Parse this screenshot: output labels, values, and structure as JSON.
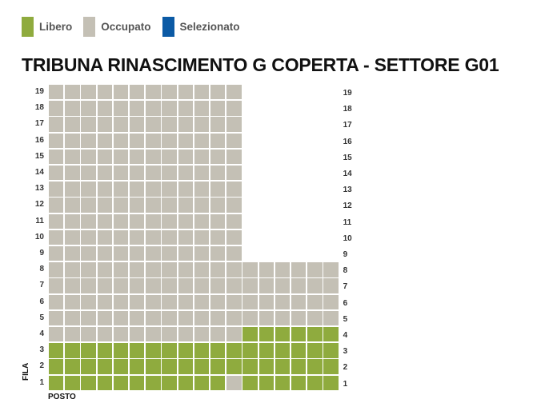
{
  "legend": {
    "items": [
      {
        "label": "Libero",
        "color": "#8fab3e"
      },
      {
        "label": "Occupato",
        "color": "#c4c0b5"
      },
      {
        "label": "Selezionato",
        "color": "#0b5aa5"
      }
    ]
  },
  "title": "TRIBUNA RINASCIMENTO G COPERTA - SETTORE G01",
  "axis": {
    "fila": "FILA",
    "posto": "POSTO"
  },
  "seat_map": {
    "rows": [
      {
        "label": "19",
        "seats": "OOOOOOOOOOOO"
      },
      {
        "label": "18",
        "seats": "OOOOOOOOOOOO"
      },
      {
        "label": "17",
        "seats": "OOOOOOOOOOOO"
      },
      {
        "label": "16",
        "seats": "OOOOOOOOOOOO"
      },
      {
        "label": "15",
        "seats": "OOOOOOOOOOOO"
      },
      {
        "label": "14",
        "seats": "OOOOOOOOOOOO"
      },
      {
        "label": "13",
        "seats": "OOOOOOOOOOOO"
      },
      {
        "label": "12",
        "seats": "OOOOOOOOOOOO"
      },
      {
        "label": "11",
        "seats": "OOOOOOOOOOOO"
      },
      {
        "label": "10",
        "seats": "OOOOOOOOOOOO"
      },
      {
        "label": "9",
        "seats": "OOOOOOOOOOOO"
      },
      {
        "label": "8",
        "seats": "OOOOOOOOOOOOOOOOOO"
      },
      {
        "label": "7",
        "seats": "OOOOOOOOOOOOOOOOOO"
      },
      {
        "label": "6",
        "seats": "OOOOOOOOOOOOOOOOOO"
      },
      {
        "label": "5",
        "seats": "OOOOOOOOOOOOOOOOOO"
      },
      {
        "label": "4",
        "seats": "OOOOOOOOOOOOLLLLLL"
      },
      {
        "label": "3",
        "seats": "LLLLLLLLLLLLLLLLLL"
      },
      {
        "label": "2",
        "seats": "LLLLLLLLLLLLLLLLLL"
      },
      {
        "label": "1",
        "seats": "LLLLLLLLLLLOLLLLLL"
      }
    ]
  }
}
